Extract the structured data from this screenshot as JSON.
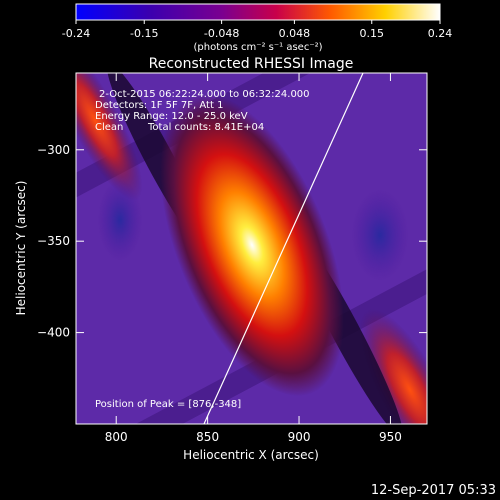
{
  "colorbar": {
    "tick_labels": [
      "-0.24",
      "-0.15",
      "-0.048",
      "0.048",
      "0.15",
      "0.24"
    ],
    "tick_values": [
      -0.24,
      -0.15,
      -0.048,
      0.048,
      0.15,
      0.24
    ],
    "range": [
      -0.24,
      0.24
    ],
    "unit_label": "(photons cm⁻² s⁻¹ asec⁻²)",
    "colors": [
      "#0000ff",
      "#4b0082",
      "#a0006e",
      "#ff4000",
      "#ffff00",
      "#ffffff"
    ]
  },
  "title": "Reconstructed RHESSI Image",
  "annotations": {
    "time_range": "2-Oct-2015 06:22:24.000 to 06:32:24.000",
    "detectors": "Detectors: 1F 5F 7F, Att 1",
    "energy_range": "Energy Range: 12.0 - 25.0 keV",
    "clean_label": "Clean",
    "total_counts": "Total counts: 8.41E+04",
    "peak_position": "Position of Peak = [876,-348]"
  },
  "axes": {
    "xlabel": "Heliocentric X (arcsec)",
    "ylabel": "Heliocentric Y (arcsec)",
    "xlim": [
      778,
      970
    ],
    "ylim": [
      -450,
      -258
    ],
    "x_ticks": [
      800,
      850,
      900,
      950
    ],
    "x_tick_labels": [
      "800",
      "850",
      "900",
      "950"
    ],
    "y_ticks": [
      -300,
      -350,
      -400
    ],
    "y_tick_labels": [
      "−300",
      "−350",
      "−400"
    ]
  },
  "image": {
    "peak": [
      876,
      -348
    ],
    "limb_line": [
      [
        848,
        -450
      ],
      [
        935,
        -258
      ]
    ]
  },
  "timestamp": "12-Sep-2017 05:33"
}
